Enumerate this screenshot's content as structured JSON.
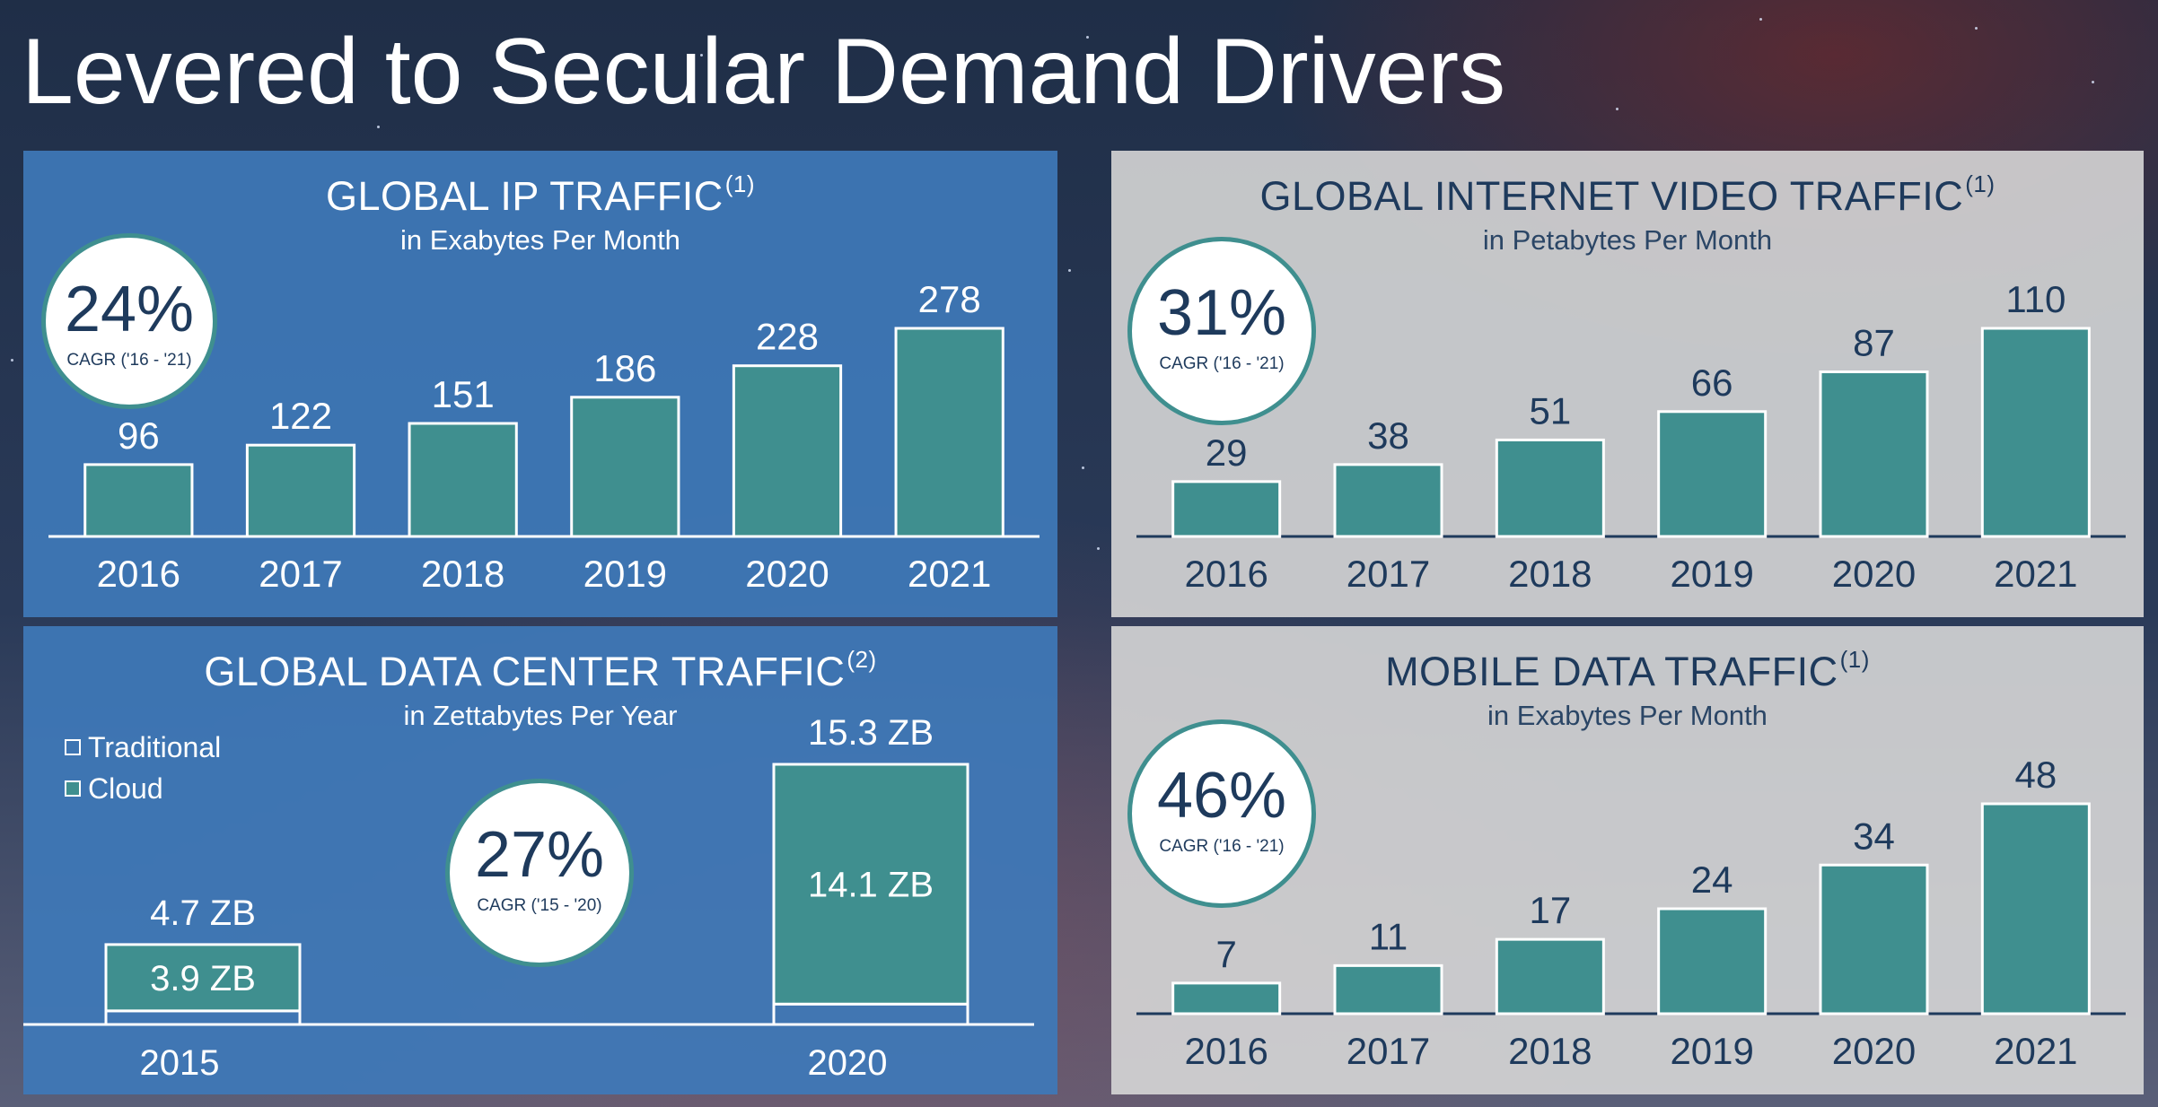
{
  "page_title": "Levered to Secular Demand Drivers",
  "colors": {
    "bar": "#3f8f8f",
    "blue_panel": "#3e78b8",
    "gray_panel": "#d6d6d6",
    "navy_text": "#1e3a5c"
  },
  "chart_data": [
    {
      "id": "ip",
      "type": "bar",
      "title": "GLOBAL IP TRAFFIC",
      "title_note": "(1)",
      "subtitle": "in Exabytes Per Month",
      "categories": [
        "2016",
        "2017",
        "2018",
        "2019",
        "2020",
        "2021"
      ],
      "values": [
        96,
        122,
        151,
        186,
        228,
        278
      ],
      "value_labels": [
        "96",
        "122",
        "151",
        "186",
        "228",
        "278"
      ],
      "ylim": [
        0,
        278
      ],
      "cagr": {
        "value": "24%",
        "label": "CAGR ('16 - '21)"
      }
    },
    {
      "id": "video",
      "type": "bar",
      "title": "GLOBAL INTERNET VIDEO TRAFFIC",
      "title_note": "(1)",
      "subtitle": "in Petabytes Per Month",
      "categories": [
        "2016",
        "2017",
        "2018",
        "2019",
        "2020",
        "2021"
      ],
      "values": [
        29,
        38,
        51,
        66,
        87,
        110
      ],
      "value_labels": [
        "29",
        "38",
        "51",
        "66",
        "87",
        "110"
      ],
      "ylim": [
        0,
        110
      ],
      "cagr": {
        "value": "31%",
        "label": "CAGR ('16 - '21)"
      }
    },
    {
      "id": "datacenter",
      "type": "bar",
      "stacked": true,
      "title": "GLOBAL DATA CENTER TRAFFIC",
      "title_note": "(2)",
      "subtitle": "in Zettabytes Per Year",
      "categories": [
        "2015",
        "2020"
      ],
      "legend": [
        "Traditional",
        "Cloud"
      ],
      "series": [
        {
          "name": "Cloud",
          "values": [
            3.9,
            14.1
          ],
          "labels": [
            "3.9 ZB",
            "14.1 ZB"
          ]
        },
        {
          "name": "Traditional",
          "values": [
            0.8,
            1.2
          ]
        }
      ],
      "totals": [
        4.7,
        15.3
      ],
      "total_labels": [
        "4.7 ZB",
        "15.3 ZB"
      ],
      "ylim": [
        0,
        15.3
      ],
      "cagr": {
        "value": "27%",
        "label": "CAGR ('15 - '20)"
      }
    },
    {
      "id": "mobile",
      "type": "bar",
      "title": "MOBILE DATA TRAFFIC",
      "title_note": "(1)",
      "subtitle": "in Exabytes Per Month",
      "categories": [
        "2016",
        "2017",
        "2018",
        "2019",
        "2020",
        "2021"
      ],
      "values": [
        7,
        11,
        17,
        24,
        34,
        48
      ],
      "value_labels": [
        "7",
        "11",
        "17",
        "24",
        "34",
        "48"
      ],
      "ylim": [
        0,
        48
      ],
      "cagr": {
        "value": "46%",
        "label": "CAGR ('16 - '21)"
      }
    }
  ]
}
